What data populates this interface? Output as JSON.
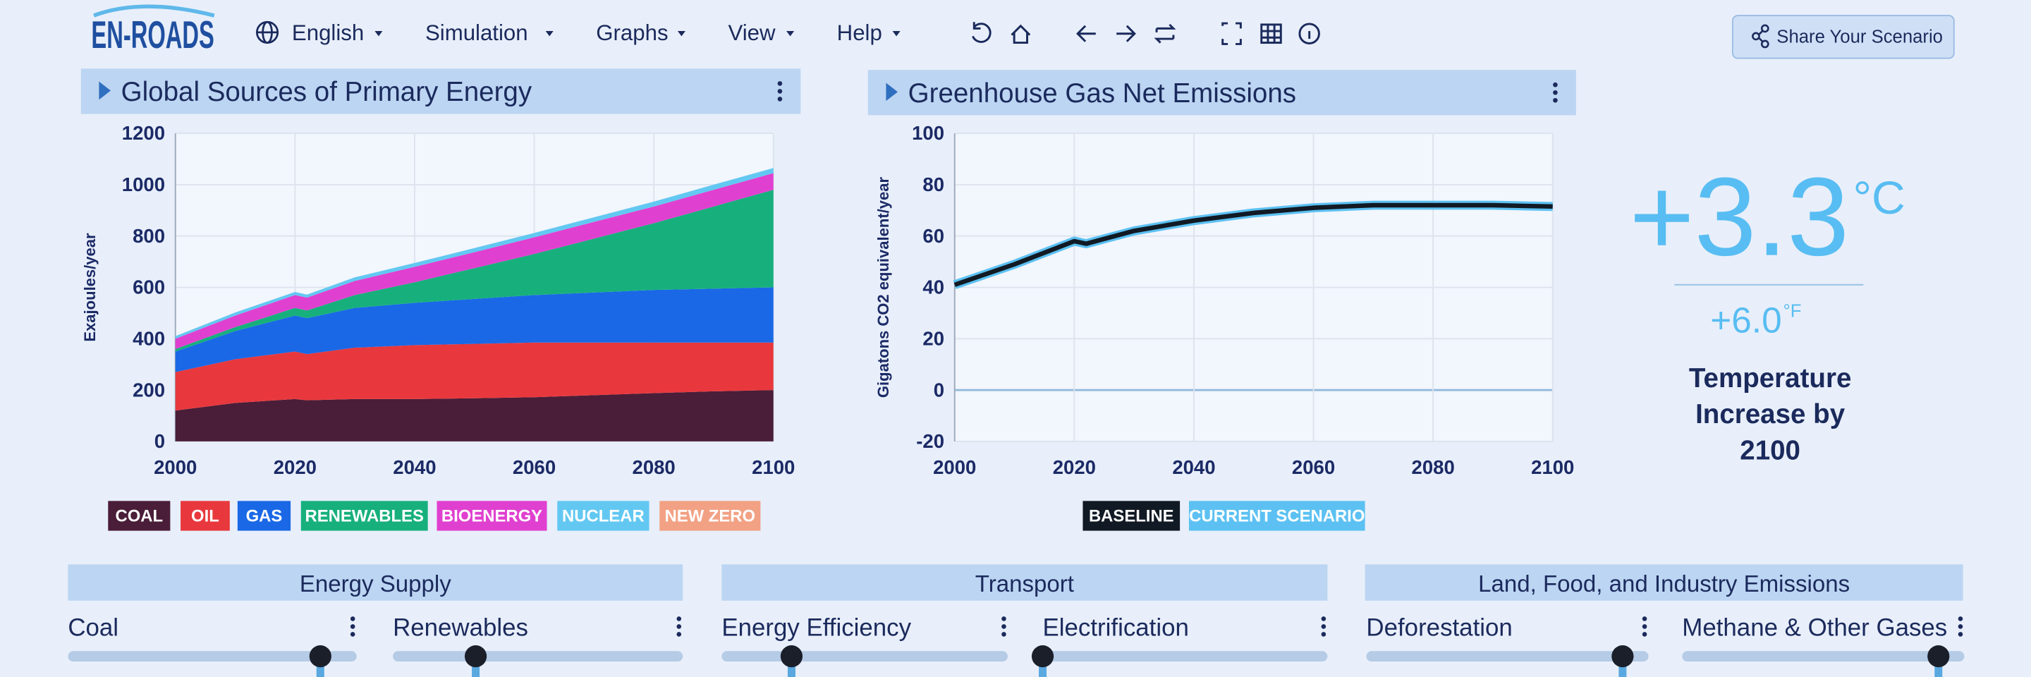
{
  "nav": {
    "logo": "EN-ROADS",
    "menus": [
      "English",
      "Simulation",
      "Graphs",
      "View",
      "Help"
    ],
    "share": "Share Your Scenario"
  },
  "chart_data": [
    {
      "type": "area",
      "stacked": true,
      "title": "Global Sources of Primary Energy",
      "y_label": "Exajoules/year",
      "x": [
        2000,
        2010,
        2020,
        2022,
        2030,
        2040,
        2050,
        2060,
        2070,
        2080,
        2090,
        2100
      ],
      "xlim": [
        2000,
        2100
      ],
      "xticks": [
        2000,
        2020,
        2040,
        2060,
        2080,
        2100
      ],
      "ylim": [
        0,
        1200
      ],
      "yticks": [
        0,
        200,
        400,
        600,
        800,
        1000,
        1200
      ],
      "grid": true,
      "series": [
        {
          "name": "COAL",
          "color": "#4a1d38",
          "values": [
            120,
            150,
            165,
            160,
            165,
            165,
            168,
            172,
            180,
            188,
            195,
            200
          ]
        },
        {
          "name": "OIL",
          "color": "#e8383d",
          "values": [
            150,
            170,
            185,
            180,
            200,
            210,
            212,
            213,
            205,
            197,
            190,
            185
          ]
        },
        {
          "name": "GAS",
          "color": "#1a68e6",
          "values": [
            80,
            110,
            140,
            140,
            155,
            165,
            175,
            185,
            195,
            205,
            210,
            215
          ]
        },
        {
          "name": "RENEWABLES",
          "color": "#17b07c",
          "values": [
            10,
            15,
            30,
            30,
            50,
            80,
            120,
            160,
            210,
            260,
            320,
            380
          ]
        },
        {
          "name": "BIOENERGY",
          "color": "#e040d0",
          "values": [
            40,
            45,
            50,
            50,
            55,
            60,
            62,
            65,
            65,
            65,
            65,
            65
          ]
        },
        {
          "name": "NUCLEAR",
          "color": "#62c8f2",
          "values": [
            10,
            12,
            12,
            12,
            14,
            15,
            16,
            17,
            18,
            19,
            20,
            20
          ]
        },
        {
          "name": "NEW ZERO",
          "color": "#f2a184",
          "values": [
            0,
            0,
            0,
            0,
            0,
            0,
            0,
            0,
            0,
            0,
            0,
            0
          ]
        }
      ]
    },
    {
      "type": "line",
      "title": "Greenhouse Gas Net Emissions",
      "y_label": "Gigatons CO2 equivalent/year",
      "x": [
        2000,
        2010,
        2020,
        2022,
        2030,
        2040,
        2050,
        2060,
        2070,
        2080,
        2090,
        2100
      ],
      "xlim": [
        2000,
        2100
      ],
      "xticks": [
        2000,
        2020,
        2040,
        2060,
        2080,
        2100
      ],
      "ylim": [
        -20,
        100
      ],
      "yticks": [
        -20,
        0,
        20,
        40,
        60,
        80,
        100
      ],
      "grid": true,
      "series": [
        {
          "name": "BASELINE",
          "color": "#111a24",
          "values": [
            41,
            49,
            58,
            57,
            62,
            66,
            69,
            71,
            72,
            72,
            72,
            71.5
          ]
        },
        {
          "name": "CURRENT SCENARIO",
          "color": "#5cc1f2",
          "values": [
            41,
            49,
            58,
            57,
            62,
            66,
            69,
            71,
            72,
            72,
            72,
            71.5
          ]
        }
      ]
    }
  ],
  "temperature": {
    "celsius": "+3.3",
    "celsius_unit": "°C",
    "fahrenheit": "+6.0",
    "fahrenheit_unit": "°F",
    "caption": [
      "Temperature",
      "Increase by",
      "2100"
    ]
  },
  "sliders": [
    {
      "group": "Energy Supply",
      "items": [
        "Coal",
        "Renewables"
      ]
    },
    {
      "group": "Transport",
      "items": [
        "Energy Efficiency",
        "Electrification"
      ]
    },
    {
      "group": "Land, Food, and Industry Emissions",
      "items": [
        "Deforestation",
        "Methane & Other Gases"
      ]
    }
  ]
}
